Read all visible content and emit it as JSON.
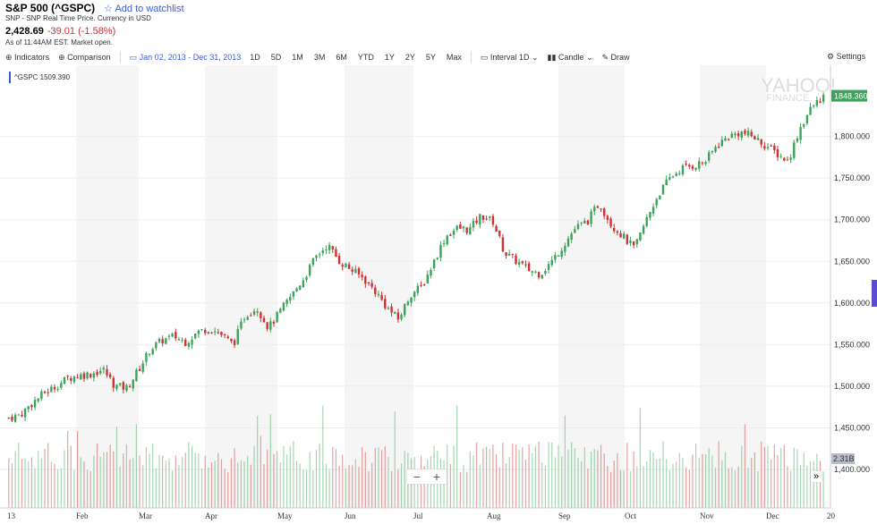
{
  "header": {
    "title": "S&P 500 (^GSPC)",
    "watchlist": "Add to watchlist",
    "source": "SNP - SNP Real Time Price. Currency in USD",
    "price": "2,428.69",
    "change": "-39.01 (-1.58%)",
    "as_of": "As of 11:44AM EST. Market open."
  },
  "toolbar": {
    "indicators": "Indicators",
    "comparison": "Comparison",
    "date_range": "Jan 02, 2013 - Dec 31, 2013",
    "ranges": [
      "1D",
      "5D",
      "1M",
      "3M",
      "6M",
      "YTD",
      "1Y",
      "2Y",
      "5Y",
      "Max"
    ],
    "interval_label": "Interval",
    "interval": "1D",
    "chart_type": "Candle",
    "draw": "Draw",
    "settings": "Settings"
  },
  "legend": "^GSPC 1509.390",
  "watermark": "YAHOO! FINANCE",
  "last_price_label": "1848.360",
  "volume_label": "2.31B",
  "colors": {
    "up": "#3ca35b",
    "down": "#d0302f",
    "accent": "#3b5bdb"
  },
  "chart_data": {
    "type": "candlestick",
    "ylim": [
      1375,
      1875
    ],
    "yticks": [
      "1,400.000",
      "1,450.000",
      "1,500.000",
      "1,550.000",
      "1,600.000",
      "1,650.000",
      "1,700.000",
      "1,750.000",
      "1,800.000"
    ],
    "ytick_values": [
      1400,
      1450,
      1500,
      1550,
      1600,
      1650,
      1700,
      1750,
      1800
    ],
    "xticks": [
      "13",
      "Feb",
      "Mar",
      "Apr",
      "May",
      "Jun",
      "Jul",
      "Aug",
      "Sep",
      "Oct",
      "Nov",
      "Dec",
      "20"
    ],
    "closes": [
      1462,
      1466,
      1480,
      1492,
      1500,
      1510,
      1513,
      1515,
      1520,
      1500,
      1498,
      1520,
      1545,
      1555,
      1560,
      1553,
      1565,
      1570,
      1562,
      1550,
      1585,
      1595,
      1570,
      1590,
      1610,
      1630,
      1655,
      1670,
      1650,
      1640,
      1630,
      1615,
      1595,
      1580,
      1610,
      1620,
      1650,
      1680,
      1690,
      1688,
      1705,
      1698,
      1660,
      1650,
      1640,
      1635,
      1650,
      1670,
      1690,
      1698,
      1720,
      1695,
      1680,
      1665,
      1700,
      1730,
      1750,
      1762,
      1765,
      1770,
      1790,
      1800,
      1805,
      1800,
      1790,
      1780,
      1770,
      1810,
      1835,
      1848
    ]
  }
}
